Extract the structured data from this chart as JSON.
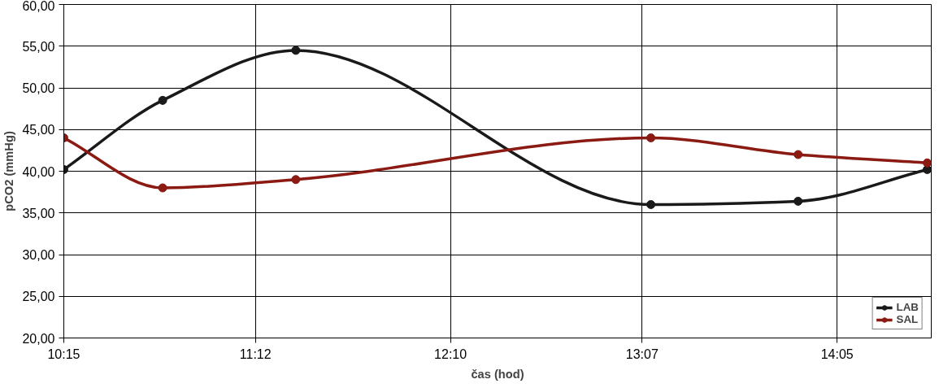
{
  "chart_data": {
    "type": "line",
    "xlabel": "čas (hod)",
    "ylabel": "pCO2 (mmHg)",
    "xlim": [
      10.25,
      14.55
    ],
    "ylim": [
      20,
      60
    ],
    "xticks": [
      {
        "value": 10.25,
        "label": "10:15"
      },
      {
        "value": 11.2,
        "label": "11:12"
      },
      {
        "value": 12.1667,
        "label": "12:10"
      },
      {
        "value": 13.1167,
        "label": "13:07"
      },
      {
        "value": 14.0833,
        "label": "14:05"
      }
    ],
    "yticks": [
      {
        "value": 20,
        "label": "20,00"
      },
      {
        "value": 25,
        "label": "25,00"
      },
      {
        "value": 30,
        "label": "30,00"
      },
      {
        "value": 35,
        "label": "35,00"
      },
      {
        "value": 40,
        "label": "40,00"
      },
      {
        "value": 45,
        "label": "45,00"
      },
      {
        "value": 50,
        "label": "50,00"
      },
      {
        "value": 55,
        "label": "55,00"
      },
      {
        "value": 60,
        "label": "60,00"
      }
    ],
    "x": [
      10.25,
      10.74,
      11.4,
      13.16,
      13.89,
      14.53
    ],
    "series": [
      {
        "name": "LAB",
        "color": "#1a1a1a",
        "values": [
          40.2,
          48.5,
          54.5,
          36.0,
          36.4,
          40.2
        ]
      },
      {
        "name": "SAL",
        "color": "#8b1a12",
        "values": [
          44.0,
          38.0,
          39.0,
          44.0,
          42.0,
          41.0
        ]
      }
    ],
    "grid": true,
    "legend": "bottom right",
    "marker": "circle",
    "line_style": "solid"
  }
}
